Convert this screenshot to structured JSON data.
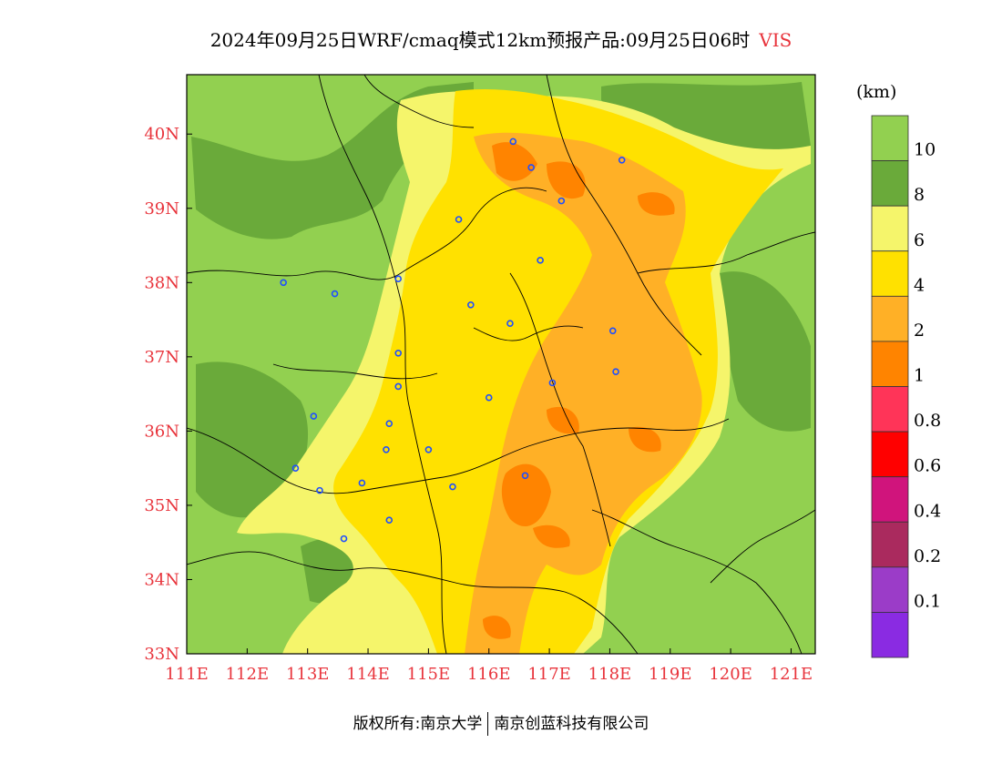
{
  "title": {
    "text": "2024年09月25日WRF/cmaq模式12km预报产品:09月25日06时",
    "variable": "VIS"
  },
  "map": {
    "lon_ticks": [
      "111E",
      "112E",
      "113E",
      "114E",
      "115E",
      "116E",
      "117E",
      "118E",
      "119E",
      "120E",
      "121E"
    ],
    "lat_ticks": [
      "40N",
      "39N",
      "38N",
      "37N",
      "36N",
      "35N",
      "34N",
      "33N"
    ],
    "lon_range": [
      111,
      121.4
    ],
    "lat_range": [
      33,
      40.8
    ],
    "cities": [
      [
        116.4,
        39.9
      ],
      [
        116.7,
        39.55
      ],
      [
        118.2,
        39.65
      ],
      [
        117.2,
        39.1
      ],
      [
        115.5,
        38.85
      ],
      [
        116.85,
        38.3
      ],
      [
        114.5,
        38.05
      ],
      [
        112.6,
        38.0
      ],
      [
        113.45,
        37.85
      ],
      [
        115.7,
        37.7
      ],
      [
        116.35,
        37.45
      ],
      [
        118.05,
        37.35
      ],
      [
        114.5,
        37.05
      ],
      [
        118.1,
        36.8
      ],
      [
        117.05,
        36.65
      ],
      [
        114.5,
        36.6
      ],
      [
        116.0,
        36.45
      ],
      [
        114.35,
        36.1
      ],
      [
        113.1,
        36.2
      ],
      [
        114.3,
        35.75
      ],
      [
        115.0,
        35.75
      ],
      [
        112.8,
        35.5
      ],
      [
        113.2,
        35.2
      ],
      [
        113.9,
        35.3
      ],
      [
        115.4,
        35.25
      ],
      [
        116.6,
        35.4
      ],
      [
        114.35,
        34.8
      ],
      [
        113.6,
        34.55
      ]
    ]
  },
  "legend": {
    "unit": "(km)",
    "labels": [
      "10",
      "8",
      "6",
      "4",
      "2",
      "1",
      "0.8",
      "0.6",
      "0.4",
      "0.2",
      "0.1"
    ],
    "colors": [
      "#92d050",
      "#6aaa3a",
      "#f5f56b",
      "#ffe100",
      "#ffb026",
      "#ff8400",
      "#ff3458",
      "#ff0000",
      "#d0147c",
      "#aa2a5e",
      "#9b3cc8",
      "#8a2be2"
    ]
  },
  "footer": {
    "left": "版权所有:南京大学",
    "right": "南京创蓝科技有限公司"
  }
}
